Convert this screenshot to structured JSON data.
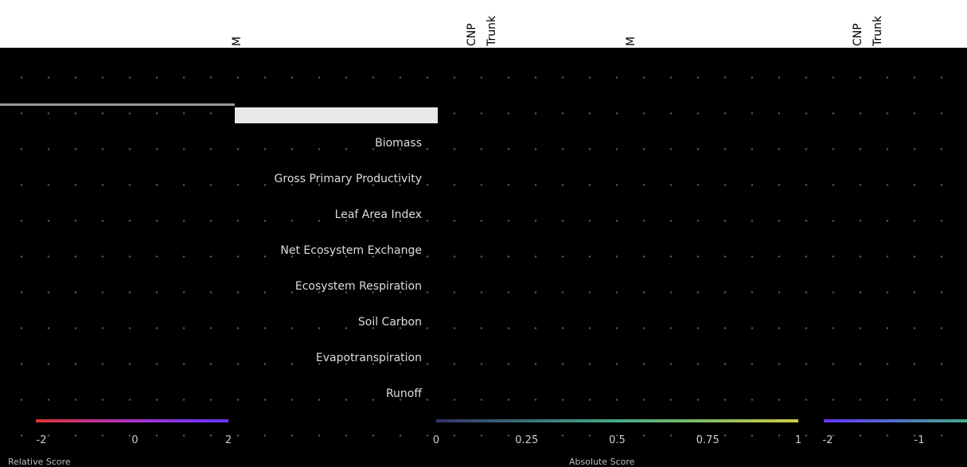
{
  "column_labels": [
    "M",
    "CNP",
    "Trunk",
    "M",
    "CNP",
    "Trunk"
  ],
  "row_labels": [
    "Biomass",
    "Gross Primary Productivity",
    "Leaf Area Index",
    "Net Ecosystem Exchange",
    "Ecosystem Respiration",
    "Soil Carbon",
    "Evapotranspiration",
    "Runoff"
  ],
  "relative_ticks": [
    "-2",
    "0",
    "2"
  ],
  "absolute_ticks": [
    "0",
    "0.25",
    "0.5",
    "0.75",
    "1"
  ],
  "right_ticks": [
    "-2",
    "-1"
  ],
  "captions": [
    "Relative Score",
    "Absolute Score"
  ]
}
